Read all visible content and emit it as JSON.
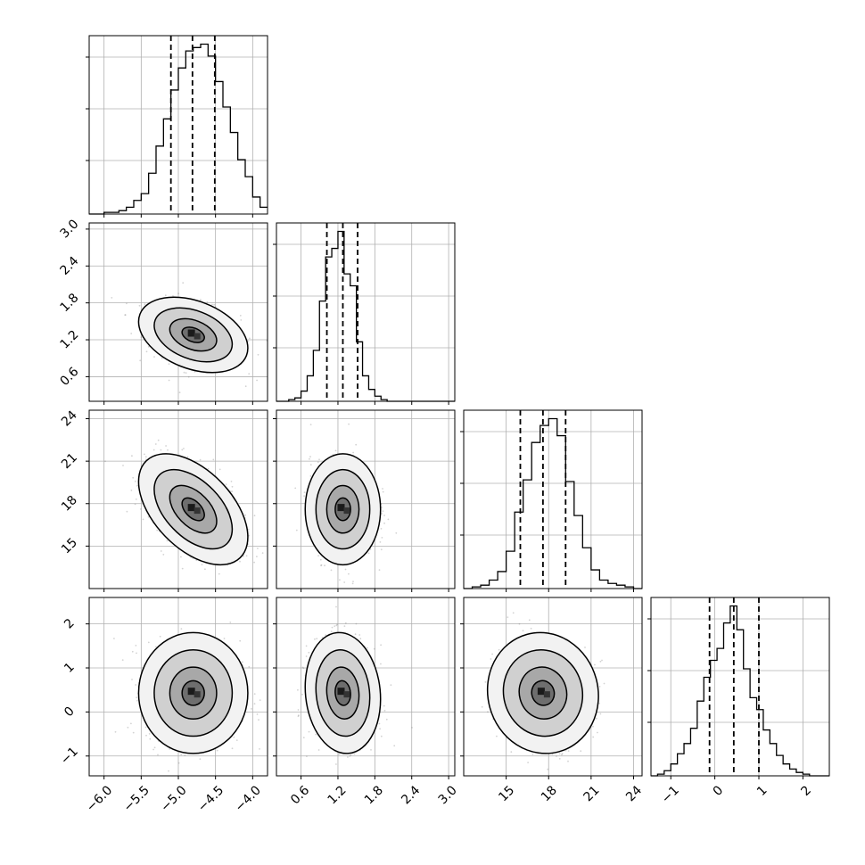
{
  "chart_data": {
    "type": "corner",
    "parameters": 4,
    "grid": true,
    "quantile_lines": "dashed",
    "axes": [
      {
        "range": [
          -6.2,
          -3.8
        ],
        "ticks": [
          -6.0,
          -5.5,
          -5.0,
          -4.5,
          -4.0
        ],
        "tick_labels": [
          "−6.0",
          "−5.5",
          "−5.0",
          "−4.5",
          "−4.0"
        ]
      },
      {
        "range": [
          0.2,
          3.1
        ],
        "ticks": [
          0.6,
          1.2,
          1.8,
          2.4,
          3.0
        ],
        "tick_labels": [
          "0.6",
          "1.2",
          "1.8",
          "2.4",
          "3.0"
        ]
      },
      {
        "range": [
          12.0,
          24.6
        ],
        "ticks": [
          15,
          18,
          21,
          24
        ],
        "tick_labels": [
          "15",
          "18",
          "21",
          "24"
        ]
      },
      {
        "range": [
          -1.45,
          2.6
        ],
        "ticks": [
          -1,
          0,
          1,
          2
        ],
        "tick_labels": [
          "−1",
          "0",
          "1",
          "2"
        ]
      }
    ],
    "marginals": [
      {
        "param": 0,
        "quantiles": [
          -5.1,
          -4.81,
          -4.51
        ],
        "bin_edges": [
          -6.2,
          -6.1,
          -6.0,
          -5.9,
          -5.8,
          -5.7,
          -5.6,
          -5.5,
          -5.4,
          -5.3,
          -5.2,
          -5.1,
          -5.0,
          -4.9,
          -4.8,
          -4.7,
          -4.6,
          -4.5,
          -4.4,
          -4.3,
          -4.2,
          -4.1,
          -4.0,
          -3.9,
          -3.8
        ],
        "counts": [
          0.0,
          0.0,
          0.01,
          0.01,
          0.02,
          0.04,
          0.08,
          0.12,
          0.24,
          0.4,
          0.56,
          0.73,
          0.86,
          0.96,
          0.98,
          1.0,
          0.93,
          0.78,
          0.63,
          0.48,
          0.32,
          0.22,
          0.1,
          0.04
        ]
      },
      {
        "param": 1,
        "quantiles": [
          1.02,
          1.28,
          1.52
        ],
        "bin_edges": [
          0.2,
          0.3,
          0.4,
          0.5,
          0.6,
          0.7,
          0.8,
          0.9,
          1.0,
          1.1,
          1.2,
          1.3,
          1.4,
          1.5,
          1.6,
          1.7,
          1.8,
          1.9,
          2.0,
          2.1,
          2.2,
          2.3,
          2.4,
          2.5,
          2.6,
          2.7,
          2.8,
          2.9,
          3.0,
          3.1
        ],
        "counts": [
          0.0,
          0.0,
          0.01,
          0.02,
          0.06,
          0.15,
          0.3,
          0.59,
          0.85,
          0.9,
          1.0,
          0.75,
          0.68,
          0.35,
          0.15,
          0.07,
          0.03,
          0.01,
          0.0,
          0.0,
          0.0,
          0.0,
          0.0,
          0.0,
          0.0,
          0.0,
          0.0,
          0.0,
          0.0
        ]
      },
      {
        "param": 2,
        "quantiles": [
          16.0,
          17.6,
          19.2
        ],
        "bin_edges": [
          12.0,
          12.6,
          13.2,
          13.8,
          14.4,
          15.0,
          15.6,
          16.2,
          16.8,
          17.4,
          18.0,
          18.6,
          19.2,
          19.8,
          20.4,
          21.0,
          21.6,
          22.2,
          22.8,
          23.4,
          24.0,
          24.6
        ],
        "counts": [
          0.0,
          0.01,
          0.02,
          0.05,
          0.1,
          0.22,
          0.45,
          0.64,
          0.86,
          0.96,
          1.0,
          0.9,
          0.63,
          0.43,
          0.24,
          0.11,
          0.05,
          0.03,
          0.02,
          0.01,
          0.0
        ]
      },
      {
        "param": 3,
        "quantiles": [
          -0.12,
          0.43,
          1.0
        ],
        "bin_edges": [
          -1.45,
          -1.3,
          -1.15,
          -1.0,
          -0.85,
          -0.7,
          -0.55,
          -0.4,
          -0.25,
          -0.1,
          0.05,
          0.2,
          0.35,
          0.5,
          0.65,
          0.8,
          0.95,
          1.1,
          1.25,
          1.4,
          1.55,
          1.7,
          1.85,
          2.0,
          2.15,
          2.3,
          2.45,
          2.6
        ],
        "counts": [
          0.0,
          0.01,
          0.03,
          0.07,
          0.13,
          0.19,
          0.28,
          0.44,
          0.58,
          0.68,
          0.75,
          0.9,
          1.0,
          0.86,
          0.63,
          0.46,
          0.39,
          0.27,
          0.19,
          0.12,
          0.07,
          0.04,
          0.02,
          0.01,
          0.0,
          0.0,
          0.0
        ]
      }
    ],
    "means": [
      -4.8,
      1.28,
      17.6,
      0.43
    ],
    "sigmas": [
      0.3,
      0.25,
      1.6,
      0.56
    ],
    "correlations": [
      {
        "x": 0,
        "y": 1,
        "rho": -0.35
      },
      {
        "x": 0,
        "y": 2,
        "rho": -0.5
      },
      {
        "x": 0,
        "y": 3,
        "rho": 0.0
      },
      {
        "x": 1,
        "y": 2,
        "rho": 0.0
      },
      {
        "x": 1,
        "y": 3,
        "rho": -0.1
      },
      {
        "x": 2,
        "y": 3,
        "rho": -0.05
      }
    ]
  }
}
